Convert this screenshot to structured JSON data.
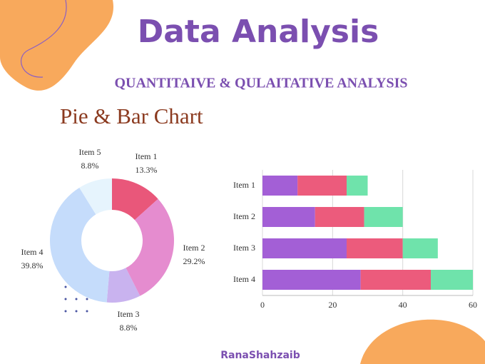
{
  "header": {
    "title": "Data Analysis",
    "subtitle": "QUANTITAIVE & QULAITATIVE ANALYSIS",
    "section": "Pie & Bar Chart"
  },
  "chart_data": [
    {
      "type": "pie",
      "donut": true,
      "categories": [
        "Item 1",
        "Item 2",
        "Item 3",
        "Item 4",
        "Item 5"
      ],
      "values": [
        13.3,
        29.2,
        8.8,
        39.8,
        8.8
      ],
      "value_labels": [
        "13.3%",
        "29.2%",
        "8.8%",
        "39.8%",
        "8.8%"
      ],
      "colors": [
        "#e9577a",
        "#e58ccf",
        "#c9b3ef",
        "#c5dcfb",
        "#e6f4fd"
      ]
    },
    {
      "type": "hbar",
      "stacked": true,
      "categories": [
        "Item 1",
        "Item 2",
        "Item 3",
        "Item 4"
      ],
      "series": [
        {
          "color": "#a35fd6",
          "values": [
            10,
            15,
            24,
            28
          ]
        },
        {
          "color": "#ec5b7c",
          "values": [
            14,
            14,
            16,
            20
          ]
        },
        {
          "color": "#6fe3ab",
          "values": [
            6,
            11,
            10,
            12
          ]
        }
      ],
      "xlim": [
        0,
        60
      ],
      "xticks": [
        0,
        20,
        40,
        60
      ],
      "grid": true
    }
  ],
  "footer": {
    "author": "RanaShahzaib"
  }
}
